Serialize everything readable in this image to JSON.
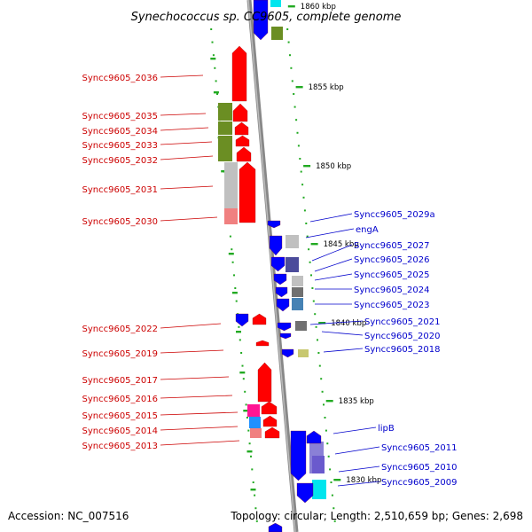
{
  "title": "Synechococcus sp. CC9605, complete genome",
  "footer": {
    "accession": "Accession: NC_007516",
    "summary": "Topology: circular; Length: 2,510,659 bp; Genes: 2,698"
  },
  "colors": {
    "left_label": "#cc0000",
    "right_label": "#0000cc",
    "backbone": "#888888",
    "tick_green": "#22aa22",
    "forward_gene": "#ff0000",
    "reverse_gene": "#0000ff"
  },
  "scale_labels": [
    "1860 kbp",
    "1855 kbp",
    "1850 kbp",
    "1845 kbp",
    "1840 kbp",
    "1835 kbp",
    "1830 kbp"
  ],
  "left_labels": [
    "Syncc9605_2036",
    "Syncc9605_2035",
    "Syncc9605_2034",
    "Syncc9605_2033",
    "Syncc9605_2032",
    "Syncc9605_2031",
    "Syncc9605_2030",
    "Syncc9605_2022",
    "Syncc9605_2019",
    "Syncc9605_2017",
    "Syncc9605_2016",
    "Syncc9605_2015",
    "Syncc9605_2014",
    "Syncc9605_2013"
  ],
  "right_labels": [
    "Syncc9605_2029a",
    "engA",
    "Syncc9605_2027",
    "Syncc9605_2026",
    "Syncc9605_2025",
    "Syncc9605_2024",
    "Syncc9605_2023",
    "Syncc9605_2021",
    "Syncc9605_2020",
    "Syncc9605_2018",
    "lipB",
    "Syncc9605_2011",
    "Syncc9605_2010",
    "Syncc9605_2009"
  ]
}
